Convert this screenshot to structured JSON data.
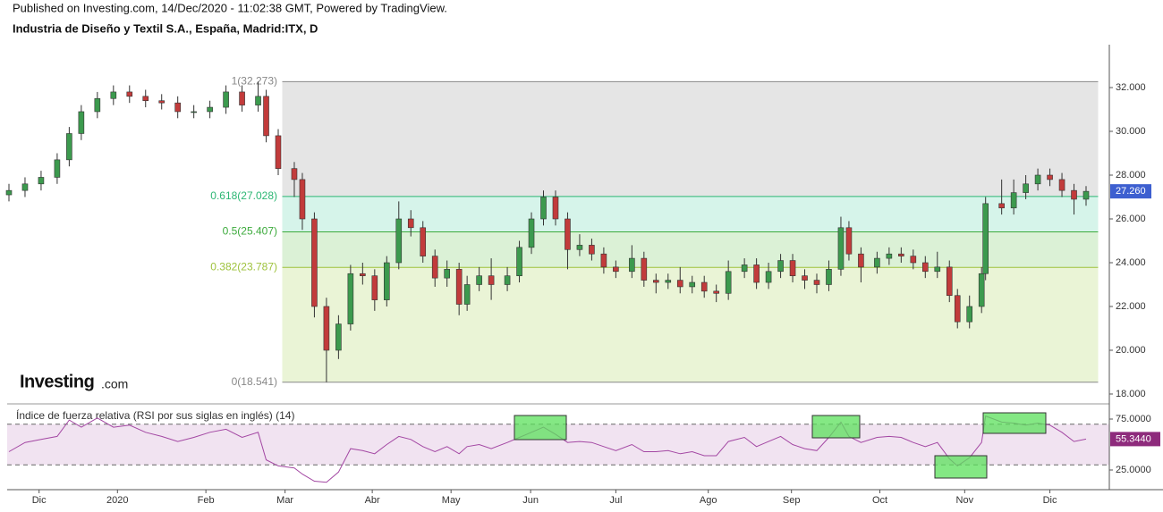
{
  "header": {
    "published": "Published on Investing.com, 14/Dec/2020 - 11:02:38 GMT, Powered by TradingView.",
    "instrument": "Industria de Diseño y Textil S.A., España, Madrid:ITX, D",
    "logo": "Investing",
    "logo_suffix": ".com"
  },
  "chart_data": [
    {
      "type": "candlestick",
      "up_color": "#3c9a4e",
      "down_color": "#c23b3b",
      "x": [
        0,
        4,
        8,
        12,
        15,
        18,
        22,
        26,
        30,
        34,
        38,
        42,
        46,
        50,
        54,
        58,
        62,
        64,
        67,
        71,
        73,
        76,
        79,
        82,
        85,
        88,
        91,
        94,
        97,
        100,
        103,
        106,
        109,
        112,
        114,
        117,
        120,
        124,
        127,
        130,
        133,
        136,
        139,
        142,
        145,
        148,
        151,
        155,
        158,
        161,
        164,
        167,
        170,
        173,
        176,
        179,
        183,
        186,
        189,
        192,
        195,
        198,
        201,
        204,
        207,
        209,
        212,
        216,
        219,
        222,
        225,
        228,
        231,
        234,
        236,
        239,
        242,
        243,
        247,
        250,
        253,
        256,
        259,
        262,
        265,
        268
      ],
      "open": [
        27.1,
        27.3,
        27.6,
        27.9,
        28.7,
        29.9,
        30.9,
        31.5,
        31.8,
        31.6,
        31.4,
        31.3,
        30.9,
        30.9,
        31.1,
        31.8,
        31.2,
        31.6,
        29.8,
        28.3,
        27.8,
        26.0,
        22.0,
        20.0,
        21.2,
        23.5,
        23.4,
        22.3,
        24.0,
        26.0,
        25.6,
        24.3,
        23.3,
        23.7,
        22.1,
        23.0,
        23.4,
        23.0,
        23.4,
        24.7,
        26.0,
        27.0,
        26.0,
        24.6,
        24.8,
        24.4,
        23.8,
        23.6,
        24.2,
        23.2,
        23.1,
        23.2,
        22.9,
        23.1,
        22.7,
        22.6,
        23.6,
        23.9,
        23.1,
        23.6,
        24.1,
        23.4,
        23.2,
        23.0,
        23.7,
        25.6,
        24.4,
        23.8,
        24.2,
        24.4,
        24.3,
        24.0,
        23.6,
        23.8,
        22.5,
        21.3,
        22.0,
        23.5,
        26.7,
        26.5,
        27.2,
        27.6,
        28.0,
        27.8,
        27.3,
        26.9
      ],
      "high": [
        27.6,
        27.9,
        28.2,
        29.0,
        30.2,
        31.2,
        31.8,
        32.1,
        32.1,
        31.9,
        31.7,
        31.6,
        31.2,
        31.4,
        32.1,
        32.1,
        32.273,
        31.9,
        30.1,
        28.6,
        28.1,
        26.3,
        22.4,
        21.6,
        23.9,
        24.0,
        23.7,
        24.3,
        26.8,
        26.4,
        25.9,
        24.6,
        24.1,
        24.0,
        23.4,
        23.8,
        24.2,
        23.8,
        25.0,
        26.3,
        27.3,
        27.3,
        26.3,
        25.3,
        25.1,
        24.7,
        24.1,
        24.8,
        24.5,
        23.5,
        23.5,
        23.8,
        23.4,
        23.4,
        23.0,
        24.1,
        24.2,
        24.2,
        24.0,
        24.4,
        24.4,
        23.7,
        23.5,
        24.1,
        26.1,
        25.9,
        24.7,
        24.5,
        24.7,
        24.7,
        24.6,
        24.3,
        24.5,
        24.1,
        22.8,
        22.5,
        23.8,
        27.0,
        27.8,
        27.8,
        28.0,
        28.3,
        28.3,
        28.1,
        27.6,
        27.5
      ],
      "low": [
        26.8,
        27.0,
        27.3,
        27.6,
        28.4,
        29.6,
        30.6,
        31.2,
        31.3,
        31.1,
        31.0,
        30.6,
        30.6,
        30.6,
        30.8,
        30.9,
        30.9,
        29.5,
        28.0,
        27.0,
        25.5,
        21.5,
        18.541,
        19.6,
        20.9,
        23.0,
        21.8,
        22.0,
        23.7,
        25.2,
        24.0,
        22.9,
        22.9,
        21.6,
        21.8,
        22.7,
        22.3,
        22.7,
        23.1,
        24.4,
        25.7,
        25.7,
        23.7,
        24.3,
        24.1,
        23.5,
        23.3,
        23.3,
        22.9,
        22.6,
        22.8,
        22.6,
        22.6,
        22.4,
        22.2,
        22.3,
        23.3,
        22.8,
        22.8,
        23.3,
        23.1,
        22.8,
        22.6,
        22.7,
        23.4,
        24.1,
        23.1,
        23.5,
        23.9,
        24.0,
        23.7,
        23.3,
        23.3,
        22.2,
        21.0,
        21.0,
        21.7,
        23.2,
        26.2,
        26.2,
        26.9,
        27.3,
        27.5,
        27.0,
        26.2,
        26.6
      ],
      "close": [
        27.3,
        27.6,
        27.9,
        28.7,
        29.9,
        30.9,
        31.5,
        31.8,
        31.6,
        31.4,
        31.3,
        30.9,
        30.9,
        31.1,
        31.8,
        31.2,
        31.6,
        29.8,
        28.3,
        27.8,
        26.0,
        22.0,
        20.0,
        21.2,
        23.5,
        23.4,
        22.3,
        24.0,
        26.0,
        25.6,
        24.3,
        23.3,
        23.7,
        22.1,
        23.0,
        23.4,
        23.0,
        23.4,
        24.7,
        26.0,
        27.0,
        26.0,
        24.6,
        24.8,
        24.4,
        23.8,
        23.6,
        24.2,
        23.2,
        23.1,
        23.2,
        22.9,
        23.1,
        22.7,
        22.6,
        23.6,
        23.9,
        23.1,
        23.6,
        24.1,
        23.4,
        23.2,
        23.0,
        23.7,
        25.6,
        24.4,
        23.8,
        24.2,
        24.4,
        24.3,
        24.0,
        23.6,
        23.8,
        22.5,
        21.3,
        22.0,
        23.5,
        26.7,
        26.5,
        27.2,
        27.6,
        28.0,
        27.8,
        27.3,
        26.9,
        27.26
      ],
      "last_label": {
        "value": 27.26,
        "label": "27.260",
        "color": "#3d5fd0"
      },
      "xlim": [
        0,
        268
      ],
      "ylim": [
        17.55,
        33.96
      ],
      "yticks": [
        {
          "value": 18,
          "label": "18.000"
        },
        {
          "value": 20,
          "label": "20.000"
        },
        {
          "value": 22,
          "label": "22.000"
        },
        {
          "value": 24,
          "label": "24.000"
        },
        {
          "value": 26,
          "label": "26.000"
        },
        {
          "value": 28,
          "label": "28.000"
        },
        {
          "value": 30,
          "label": "30.000"
        },
        {
          "value": 32,
          "label": "32.000"
        }
      ],
      "fib_x": [
        68,
        271
      ],
      "fib_levels": [
        {
          "value": 32.273,
          "label": "1(32.273)",
          "color": "#888888"
        },
        {
          "value": 27.028,
          "label": "0.618(27.028)",
          "color": "#2bb673"
        },
        {
          "value": 25.407,
          "label": "0.5(25.407)",
          "color": "#3caa3c"
        },
        {
          "value": 23.787,
          "label": "0.382(23.787)",
          "color": "#9ec23c"
        },
        {
          "value": 18.541,
          "label": "0(18.541)",
          "color": "#888888"
        }
      ],
      "zone_colors": [
        "#e5e5e5",
        "#d6f4ea",
        "#dbf1d6",
        "#eaf4d6"
      ]
    },
    {
      "type": "line",
      "title": "Índice de fuerza relativa (RSI por sus siglas en inglés) (14)",
      "color": "#a347a3",
      "band": [
        30,
        70
      ],
      "band_color": "#f1e3f1",
      "x": [
        0,
        4,
        8,
        12,
        15,
        18,
        22,
        26,
        30,
        34,
        38,
        42,
        46,
        50,
        54,
        58,
        62,
        64,
        67,
        71,
        73,
        76,
        79,
        82,
        85,
        88,
        91,
        94,
        97,
        100,
        103,
        106,
        109,
        112,
        114,
        117,
        120,
        124,
        127,
        130,
        133,
        136,
        139,
        142,
        145,
        148,
        151,
        155,
        158,
        161,
        164,
        167,
        170,
        173,
        176,
        179,
        183,
        186,
        189,
        192,
        195,
        198,
        201,
        204,
        207,
        209,
        212,
        216,
        219,
        222,
        225,
        228,
        231,
        234,
        236,
        239,
        242,
        243,
        247,
        250,
        253,
        256,
        259,
        262,
        265,
        268
      ],
      "values": [
        43,
        52,
        55,
        58,
        74,
        67,
        76,
        67,
        69,
        62,
        58,
        53,
        57,
        62,
        65,
        57,
        62,
        35,
        29,
        27,
        21,
        14,
        13,
        23,
        46,
        44,
        41,
        50,
        58,
        55,
        48,
        43,
        48,
        41,
        48,
        50,
        46,
        52,
        57,
        62,
        67,
        60,
        52,
        53,
        52,
        48,
        44,
        50,
        43,
        43,
        44,
        41,
        43,
        39,
        39,
        53,
        57,
        48,
        53,
        58,
        50,
        46,
        44,
        57,
        72,
        58,
        52,
        57,
        58,
        57,
        52,
        48,
        52,
        36,
        29,
        37,
        52,
        78,
        72,
        71,
        69,
        71,
        69,
        62,
        53,
        55.344
      ],
      "last_label": {
        "value": 55.344,
        "label": "55.3440",
        "color": "#8e2b7c"
      },
      "xlim": [
        0,
        268
      ],
      "ylim": [
        5.7,
        89.9
      ],
      "yticks": [
        {
          "value": 25,
          "label": "25.0000"
        },
        {
          "value": 75,
          "label": "75.0000"
        }
      ],
      "xticks": [
        {
          "value": 7.5,
          "label": "Dic"
        },
        {
          "value": 27,
          "label": "2020"
        },
        {
          "value": 49,
          "label": "Feb"
        },
        {
          "value": 68.7,
          "label": "Mar"
        },
        {
          "value": 90.4,
          "label": "Abr"
        },
        {
          "value": 110,
          "label": "May"
        },
        {
          "value": 129.8,
          "label": "Jun"
        },
        {
          "value": 151,
          "label": "Jul"
        },
        {
          "value": 174,
          "label": "Ago"
        },
        {
          "value": 194.7,
          "label": "Sep"
        },
        {
          "value": 216.7,
          "label": "Oct"
        },
        {
          "value": 237.8,
          "label": "Nov"
        },
        {
          "value": 259,
          "label": "Dic"
        }
      ]
    }
  ]
}
